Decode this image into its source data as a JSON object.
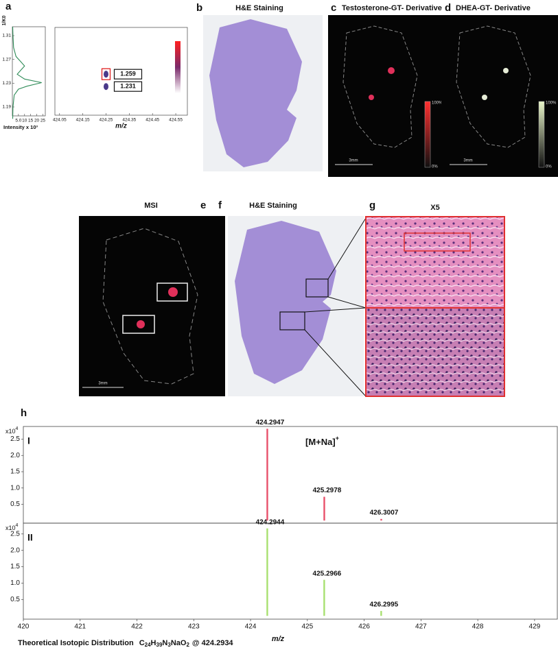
{
  "panels": [
    {
      "label": "a"
    },
    {
      "label": "b",
      "title": "H&E Staining"
    },
    {
      "label": "c",
      "title": "Testosterone-GT- Derivative",
      "scale_bar": "3mm",
      "colorbar_max": "100%",
      "colorbar_min": "0%"
    },
    {
      "label": "d",
      "title": "DHEA-GT- Derivative",
      "scale_bar": "3mm",
      "colorbar_max": "100%",
      "colorbar_min": "0%"
    },
    {
      "label": "e",
      "title": "MSI",
      "scale_bar": "3mm"
    },
    {
      "label": "f",
      "title": "H&E Staining"
    },
    {
      "label": "g",
      "title": "X5"
    },
    {
      "label": "h"
    }
  ],
  "theoretical": {
    "prefix": "Theoretical Isotopic Distribution",
    "formula": [
      {
        "text": "C",
        "sub": "24"
      },
      {
        "text": "H",
        "sub": "39"
      },
      {
        "text": "N",
        "sub": "3"
      },
      {
        "text": "NaO",
        "sub": "2"
      }
    ],
    "suffix": "@ 424.2934"
  },
  "chart_data": [
    {
      "type": "line",
      "ylabel": "1/K0",
      "xlabel": "Intensity x 10³",
      "color": "#2e8b57",
      "k0": [
        1.17,
        1.19,
        1.21,
        1.22,
        1.225,
        1.231,
        1.237,
        1.245,
        1.252,
        1.259,
        1.266,
        1.275,
        1.29,
        1.31,
        1.325
      ],
      "values": [
        0.3,
        0.5,
        1.5,
        5,
        12,
        24,
        10,
        4,
        7,
        10,
        7,
        3,
        1,
        0.5,
        0.3
      ],
      "xlim": [
        0,
        27
      ],
      "xticks": [
        {
          "value": 5,
          "label": "5.0"
        },
        10,
        15,
        20,
        25
      ],
      "ylim": [
        1.175,
        1.325
      ],
      "yticks": [
        1.19,
        1.23,
        1.27,
        1.31
      ]
    },
    {
      "type": "scatter",
      "xlabel": "m/z",
      "x": [
        424.25,
        424.25
      ],
      "values": [
        1.259,
        1.231
      ],
      "value_labels": [
        "1.259",
        "1.231"
      ],
      "xlim": [
        424.03,
        424.6
      ],
      "xticks": [
        424.05,
        424.15,
        424.25,
        424.35,
        424.45,
        424.55
      ],
      "ylim": [
        1.166,
        1.365
      ]
    },
    {
      "type": "bar",
      "name": "I",
      "color": "#e8506a",
      "multiplier": "x10",
      "exponent": "4",
      "annotation": "[M+Na]",
      "annotation_sup": "+",
      "x": [
        424.2947,
        425.2978,
        426.3007
      ],
      "values": [
        2.82,
        0.73,
        0.05
      ],
      "xlim": [
        420,
        429.4
      ],
      "ylim": [
        -0.08,
        2.89
      ],
      "yticks": [
        0.5,
        {
          "value": 1,
          "label": "1.0"
        },
        1.5,
        {
          "value": 2,
          "label": "2.0"
        },
        2.5
      ]
    },
    {
      "type": "bar",
      "name": "II",
      "color": "#a8e070",
      "multiplier": "x10",
      "exponent": "4",
      "xlabel": "m/z",
      "x": [
        424.2944,
        425.2966,
        426.2995
      ],
      "values": [
        2.67,
        1.1,
        0.15
      ],
      "xlim": [
        420,
        429.4
      ],
      "xticks": [
        420,
        421,
        422,
        423,
        424,
        425,
        426,
        427,
        428,
        429
      ],
      "ylim": [
        -0.1,
        2.83
      ],
      "yticks": [
        0.5,
        {
          "value": 1,
          "label": "1.0"
        },
        1.5,
        {
          "value": 2,
          "label": "2.0"
        },
        2.5
      ]
    }
  ]
}
